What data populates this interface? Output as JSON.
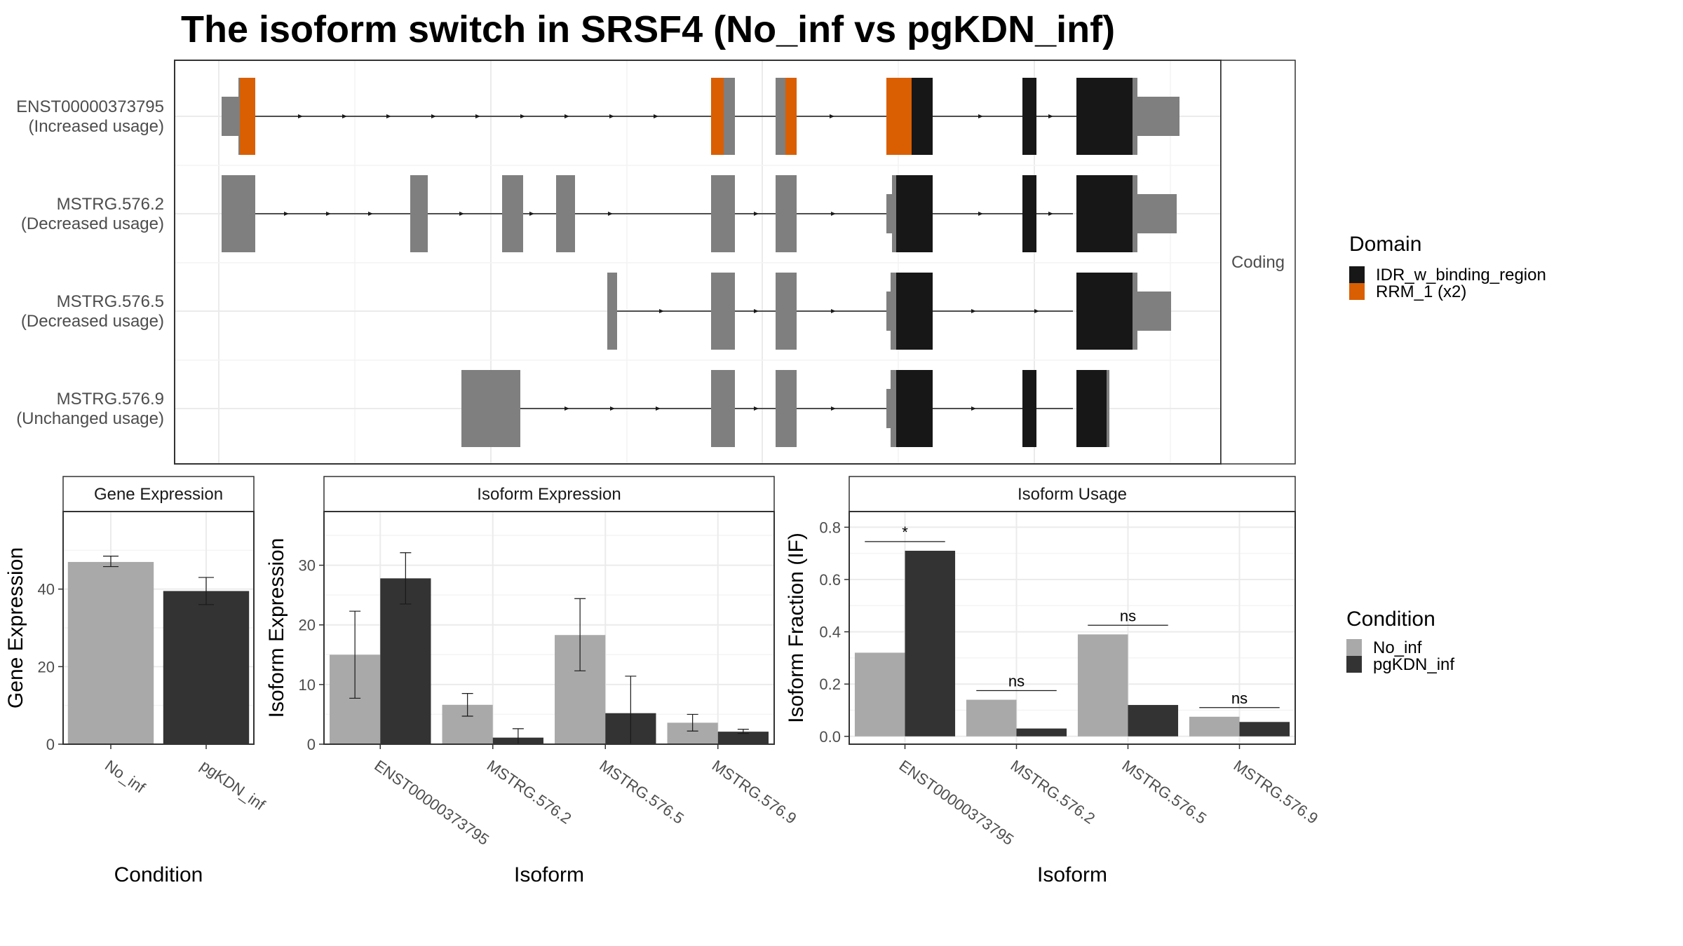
{
  "title": "The isoform switch in SRSF4 (No_inf vs pgKDN_inf)",
  "colors": {
    "no_inf": "#a9a9a9",
    "pgkdn_inf": "#333333",
    "idr": "#171717",
    "rrm": "#d95f02",
    "noncoding": "#7f7f7f"
  },
  "structure": {
    "facet_label": "Coding",
    "transcripts": [
      {
        "name": "ENST00000373795",
        "usage": "(Increased usage)"
      },
      {
        "name": "MSTRG.576.2",
        "usage": "(Decreased usage)"
      },
      {
        "name": "MSTRG.576.5",
        "usage": "(Decreased usage)"
      },
      {
        "name": "MSTRG.576.9",
        "usage": "(Unchanged usage)"
      }
    ],
    "legend": {
      "title": "Domain",
      "items": [
        {
          "label": "IDR_w_binding_region",
          "color": "#171717"
        },
        {
          "label": "RRM_1 (x2)",
          "color": "#d95f02"
        }
      ]
    }
  },
  "condition_legend": {
    "title": "Condition",
    "items": [
      {
        "label": "No_inf",
        "color": "#a9a9a9"
      },
      {
        "label": "pgKDN_inf",
        "color": "#333333"
      }
    ]
  },
  "chart_data": [
    {
      "type": "bar",
      "title": "Gene Expression",
      "xlabel": "Condition",
      "ylabel": "Gene Expression",
      "categories": [
        "No_inf",
        "pgKDN_inf"
      ],
      "values": [
        47,
        39.5
      ],
      "errors": [
        [
          45.8,
          48.5
        ],
        [
          36,
          43
        ]
      ],
      "ylim": [
        0,
        60
      ],
      "yticks": [
        0,
        20,
        40
      ]
    },
    {
      "type": "bar",
      "title": "Isoform Expression",
      "xlabel": "Isoform",
      "ylabel": "Isoform Expression",
      "categories": [
        "ENST00000373795",
        "MSTRG.576.2",
        "MSTRG.576.5",
        "MSTRG.576.9"
      ],
      "series": [
        {
          "name": "No_inf",
          "values": [
            15,
            6.6,
            18.3,
            3.6
          ],
          "errors": [
            [
              7.7,
              22.3
            ],
            [
              4.7,
              8.5
            ],
            [
              12.3,
              24.4
            ],
            [
              2.2,
              5
            ]
          ]
        },
        {
          "name": "pgKDN_inf",
          "values": [
            27.8,
            1.1,
            5.2,
            2.1
          ],
          "errors": [
            [
              23.5,
              32.1
            ],
            [
              0,
              2.6
            ],
            [
              0,
              11.4
            ],
            [
              1.8,
              2.5
            ]
          ]
        }
      ],
      "ylim": [
        0,
        39
      ],
      "yticks": [
        0,
        10,
        20,
        30
      ]
    },
    {
      "type": "bar",
      "title": "Isoform Usage",
      "xlabel": "Isoform",
      "ylabel": "Isoform Fraction (IF)",
      "categories": [
        "ENST00000373795",
        "MSTRG.576.2",
        "MSTRG.576.5",
        "MSTRG.576.9"
      ],
      "series": [
        {
          "name": "No_inf",
          "values": [
            0.32,
            0.14,
            0.39,
            0.075
          ]
        },
        {
          "name": "pgKDN_inf",
          "values": [
            0.71,
            0.03,
            0.12,
            0.055
          ]
        }
      ],
      "significance": [
        {
          "label": "*",
          "y": 0.745
        },
        {
          "label": "ns",
          "y": 0.175
        },
        {
          "label": "ns",
          "y": 0.425
        },
        {
          "label": "ns",
          "y": 0.11
        }
      ],
      "ylim": [
        -0.03,
        0.86
      ],
      "yticks": [
        0.0,
        0.2,
        0.4,
        0.6,
        0.8
      ],
      "ytick_labels": [
        "0.0",
        "0.2",
        "0.4",
        "0.6",
        "0.8"
      ]
    }
  ]
}
